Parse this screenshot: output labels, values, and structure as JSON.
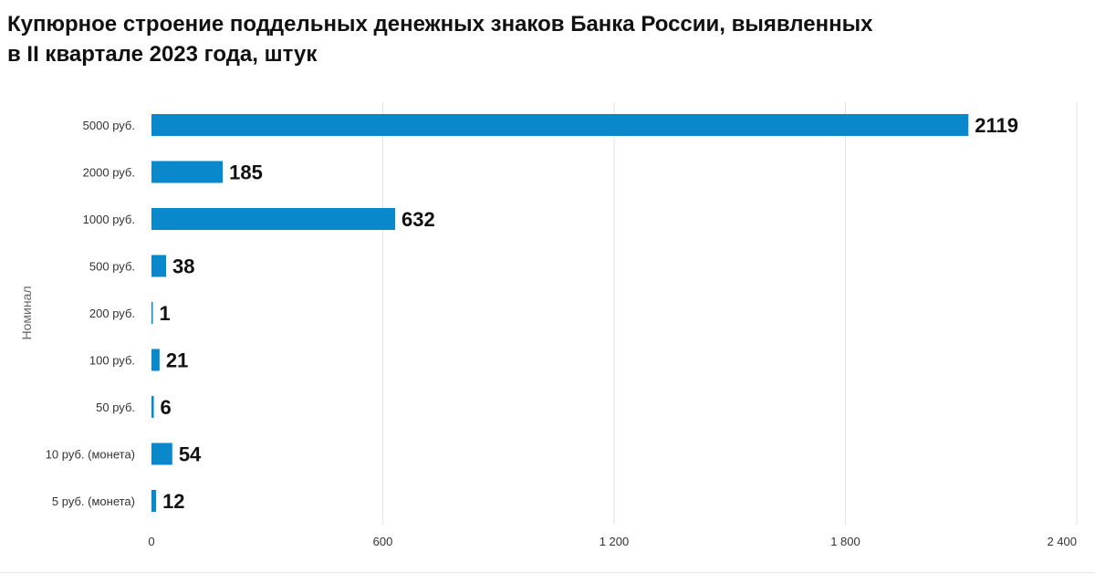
{
  "title_lines": [
    "Купюрное строение поддельных денежных знаков Банка России, выявленных",
    "в II квартале 2023 года, штук"
  ],
  "chart_data": {
    "type": "bar",
    "orientation": "horizontal",
    "title": "Купюрное строение поддельных денежных знаков Банка России, выявленных в II квартале 2023 года, штук",
    "xlabel": "",
    "ylabel": "Номинал",
    "categories": [
      "5000 руб.",
      "2000 руб.",
      "1000 руб.",
      "500 руб.",
      "200 руб.",
      "100 руб.",
      "50 руб.",
      "10 руб. (монета)",
      "5 руб. (монета)"
    ],
    "values": [
      2119,
      185,
      632,
      38,
      1,
      21,
      6,
      54,
      12
    ],
    "data_labels": [
      "2119",
      "185",
      "632",
      "38",
      "1",
      "21",
      "6",
      "54",
      "12"
    ],
    "xlim": [
      0,
      2400
    ],
    "x_ticks": [
      0,
      600,
      1200,
      1800,
      2400
    ],
    "x_tick_labels": [
      "0",
      "600",
      "1 200",
      "1 800",
      "2 400"
    ],
    "grid": "vertical",
    "legend": "none",
    "bar_color": "#0a88cc",
    "grid_color": "#e3e3e3"
  }
}
